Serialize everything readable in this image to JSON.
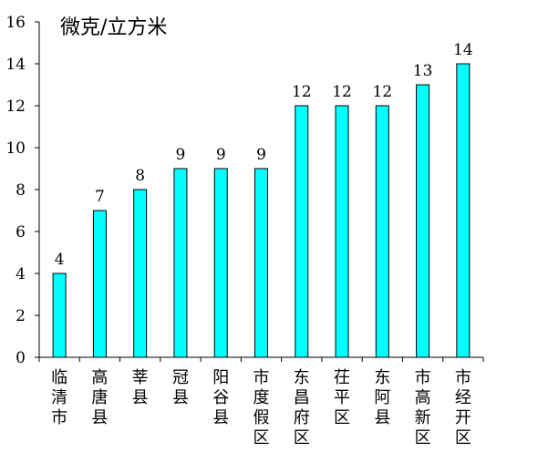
{
  "chart_data": {
    "type": "bar",
    "unit_label": "微克/立方米",
    "categories": [
      "临清市",
      "高唐县",
      "莘县",
      "冠县",
      "阳谷县",
      "市度假区",
      "东昌府区",
      "茌平区",
      "东阿县",
      "市高新区",
      "市经开区"
    ],
    "values": [
      4,
      7,
      8,
      9,
      9,
      9,
      12,
      12,
      12,
      13,
      14
    ],
    "ylim": [
      0,
      16
    ],
    "yticks": [
      0,
      2,
      4,
      6,
      8,
      10,
      12,
      14,
      16
    ],
    "bar_color": "#00FFFF",
    "bar_stroke": "#000000",
    "grid": false,
    "legend": "none"
  }
}
